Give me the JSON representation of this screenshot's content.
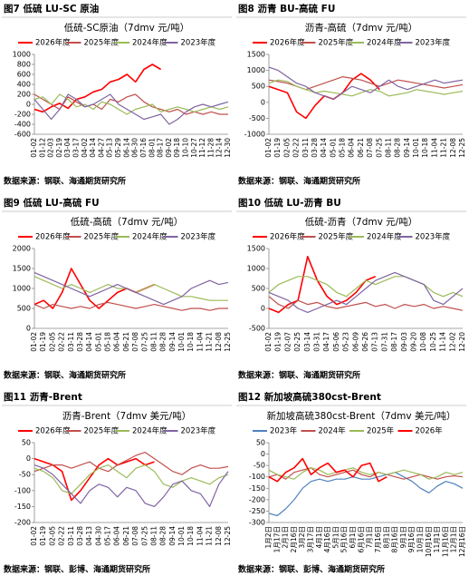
{
  "chart_data": [
    {
      "type": "line",
      "figure_title": "图7  低硫 LU-SC 原油",
      "title": "低硫-SC原油（7dmv 元/吨）",
      "categories": [
        "01-02",
        "01-12",
        "02-03",
        "02-19",
        "03-04",
        "03-17",
        "04-02",
        "04-14",
        "04-27",
        "05-13",
        "05-29",
        "06-14",
        "06-30",
        "07-16",
        "08-01",
        "08-17",
        "09-02",
        "09-18",
        "10-10",
        "10-27",
        "11-12",
        "11-28",
        "12-14",
        "12-30"
      ],
      "ylim": [
        -600,
        1000
      ],
      "yticks": [
        -600,
        -400,
        -200,
        0,
        200,
        400,
        600,
        800,
        1000
      ],
      "series": [
        {
          "name": "2026年度",
          "color": "#ff0000",
          "values": [
            -100,
            -150,
            -50,
            20,
            -80,
            100,
            150,
            250,
            300,
            450,
            500,
            600,
            450,
            700,
            800,
            700,
            null,
            null,
            null,
            null,
            null,
            null,
            null,
            null
          ]
        },
        {
          "name": "2025年度",
          "color": "#c0504d",
          "values": [
            200,
            100,
            0,
            -100,
            150,
            50,
            -50,
            0,
            -100,
            100,
            50,
            150,
            200,
            50,
            -50,
            -100,
            -150,
            -100,
            -200,
            -150,
            -200,
            -150,
            -200,
            -200
          ]
        },
        {
          "name": "2024年度",
          "color": "#9bbb59",
          "values": [
            100,
            150,
            0,
            200,
            100,
            -50,
            0,
            -100,
            50,
            0,
            -100,
            -200,
            -100,
            -50,
            0,
            -150,
            -100,
            -50,
            -100,
            -150,
            -100,
            -50,
            -100,
            -50
          ]
        },
        {
          "name": "2023年度",
          "color": "#8064a2",
          "values": [
            100,
            -100,
            -300,
            -100,
            200,
            100,
            -50,
            0,
            100,
            200,
            0,
            -100,
            -200,
            -300,
            -250,
            -200,
            -400,
            -300,
            -150,
            -50,
            0,
            -50,
            0,
            50
          ]
        }
      ],
      "source": "数据来源：钢联、海通期货研究所"
    },
    {
      "type": "line",
      "figure_title": "图8  沥青 BU-高硫 FU",
      "title": "沥青-高硫（7dmv 元/吨）",
      "categories": [
        "01-02",
        "01-19",
        "02-05",
        "02-22",
        "03-11",
        "03-28",
        "04-14",
        "05-01",
        "05-18",
        "06-04",
        "06-21",
        "07-08",
        "07-25",
        "08-11",
        "08-28",
        "09-14",
        "10-01",
        "10-18",
        "11-04",
        "11-21",
        "12-08",
        "12-25"
      ],
      "ylim": [
        -1000,
        1500
      ],
      "yticks": [
        -1000,
        -500,
        0,
        500,
        1000,
        1500
      ],
      "series": [
        {
          "name": "2026年度",
          "color": "#ff0000",
          "values": [
            500,
            400,
            300,
            -300,
            -500,
            -100,
            200,
            100,
            300,
            700,
            900,
            700,
            400,
            null,
            null,
            null,
            null,
            null,
            null,
            null,
            null,
            null
          ]
        },
        {
          "name": "2025年度",
          "color": "#c0504d",
          "values": [
            700,
            650,
            600,
            500,
            400,
            500,
            600,
            700,
            800,
            750,
            700,
            600,
            500,
            600,
            700,
            650,
            600,
            550,
            500,
            450,
            500,
            550
          ]
        },
        {
          "name": "2024年度",
          "color": "#9bbb59",
          "values": [
            600,
            700,
            650,
            500,
            400,
            300,
            350,
            300,
            250,
            200,
            300,
            400,
            350,
            200,
            250,
            300,
            400,
            350,
            300,
            250,
            300,
            350
          ]
        },
        {
          "name": "2023年度",
          "color": "#8064a2",
          "values": [
            1100,
            1000,
            800,
            600,
            500,
            300,
            200,
            100,
            300,
            500,
            400,
            300,
            500,
            700,
            500,
            400,
            500,
            600,
            700,
            600,
            650,
            700
          ]
        }
      ],
      "source": "数据来源：钢联、海通期货研究所"
    },
    {
      "type": "line",
      "figure_title": "图9  低硫 LU-高硫 FU",
      "title": "低硫-高硫（7dmv 元/吨）",
      "categories": [
        "01-02",
        "01-19",
        "02-05",
        "02-22",
        "03-11",
        "03-28",
        "04-14",
        "05-01",
        "05-18",
        "06-04",
        "06-21",
        "07-08",
        "07-25",
        "08-11",
        "08-28",
        "09-14",
        "10-01",
        "10-18",
        "11-04",
        "11-21",
        "12-08",
        "12-25"
      ],
      "ylim": [
        0,
        2000
      ],
      "yticks": [
        0,
        500,
        1000,
        1500,
        2000
      ],
      "series": [
        {
          "name": "2026年度",
          "color": "#ff0000",
          "values": [
            600,
            700,
            500,
            900,
            1500,
            1100,
            700,
            500,
            700,
            900,
            1000,
            900,
            1000,
            1100,
            null,
            null,
            null,
            null,
            null,
            null,
            null,
            null
          ]
        },
        {
          "name": "2025年度",
          "color": "#c0504d",
          "values": [
            600,
            500,
            600,
            550,
            500,
            550,
            500,
            600,
            650,
            600,
            550,
            500,
            550,
            600,
            550,
            500,
            450,
            500,
            500,
            450,
            500,
            500
          ]
        },
        {
          "name": "2024年度",
          "color": "#9bbb59",
          "values": [
            1300,
            1200,
            1100,
            1000,
            1100,
            1000,
            900,
            1000,
            1100,
            1000,
            1000,
            900,
            1000,
            1100,
            1000,
            900,
            800,
            800,
            750,
            700,
            700,
            700
          ]
        },
        {
          "name": "2023年度",
          "color": "#8064a2",
          "values": [
            1400,
            1300,
            1200,
            1100,
            1000,
            900,
            800,
            900,
            1000,
            1100,
            1000,
            900,
            800,
            700,
            600,
            700,
            800,
            1000,
            1100,
            1200,
            1100,
            1150
          ]
        }
      ],
      "source": "数据来源：钢联、海通期货研究所"
    },
    {
      "type": "line",
      "figure_title": "图10  低硫 LU-沥青 BU",
      "title": "低硫-沥青（7dmv 元/吨）",
      "categories": [
        "01-02",
        "01-19",
        "02-07",
        "02-25",
        "03-14",
        "03-31",
        "04-17",
        "05-06",
        "05-23",
        "06-09",
        "06-26",
        "07-13",
        "07-31",
        "08-17",
        "09-03",
        "09-20",
        "10-08",
        "10-25",
        "11-14",
        "12-02",
        "12-20"
      ],
      "ylim": [
        -500,
        1500
      ],
      "yticks": [
        -500,
        0,
        500,
        1000,
        1500
      ],
      "series": [
        {
          "name": "2026年度",
          "color": "#ff0000",
          "values": [
            0,
            -100,
            100,
            200,
            1300,
            700,
            300,
            100,
            200,
            400,
            700,
            800,
            null,
            null,
            null,
            null,
            null,
            null,
            null,
            null,
            null
          ]
        },
        {
          "name": "2025年度",
          "color": "#c0504d",
          "values": [
            300,
            100,
            0,
            200,
            100,
            150,
            50,
            0,
            50,
            100,
            150,
            50,
            100,
            0,
            100,
            50,
            100,
            0,
            50,
            0,
            -50
          ]
        },
        {
          "name": "2024年度",
          "color": "#9bbb59",
          "values": [
            400,
            600,
            700,
            800,
            800,
            700,
            600,
            400,
            300,
            500,
            700,
            600,
            700,
            800,
            800,
            700,
            600,
            400,
            300,
            400,
            300
          ]
        },
        {
          "name": "2023年度",
          "color": "#8064a2",
          "values": [
            400,
            300,
            200,
            0,
            -100,
            0,
            100,
            200,
            100,
            300,
            500,
            700,
            800,
            900,
            800,
            700,
            600,
            200,
            100,
            300,
            500
          ]
        }
      ],
      "source": "数据来源：钢联、海通期货研究所"
    },
    {
      "type": "line",
      "figure_title": "图11  沥青-Brent",
      "title": "沥青-Brent（7dmv 美元/吨）",
      "categories": [
        "01-02",
        "01-19",
        "02-05",
        "02-22",
        "03-11",
        "03-28",
        "04-13",
        "04-30",
        "05-17",
        "06-04",
        "06-21",
        "07-08",
        "07-25",
        "08-11",
        "08-28",
        "09-14",
        "10-01",
        "10-18",
        "11-04",
        "11-21",
        "12-08",
        "12-25"
      ],
      "ylim": [
        -200,
        50
      ],
      "yticks": [
        -200,
        -150,
        -100,
        -50,
        0,
        50
      ],
      "series": [
        {
          "name": "2026年度",
          "color": "#ff0000",
          "values": [
            0,
            -10,
            -20,
            -40,
            -130,
            -100,
            -60,
            -20,
            0,
            -20,
            -10,
            0,
            -20,
            -10,
            null,
            null,
            null,
            null,
            null,
            null,
            null,
            null
          ]
        },
        {
          "name": "2025年度",
          "color": "#c0504d",
          "values": [
            -40,
            -30,
            -20,
            -20,
            -30,
            -20,
            -10,
            -30,
            -40,
            -20,
            -5,
            10,
            20,
            0,
            -20,
            -40,
            -50,
            -30,
            -20,
            -30,
            -30,
            -25
          ]
        },
        {
          "name": "2024年度",
          "color": "#9bbb59",
          "values": [
            -30,
            -40,
            -60,
            -100,
            -110,
            -80,
            -50,
            -30,
            -20,
            -40,
            -60,
            -30,
            -20,
            -40,
            -80,
            -90,
            -70,
            -60,
            -70,
            -80,
            -60,
            -50
          ]
        },
        {
          "name": "2023年度",
          "color": "#8064a2",
          "values": [
            -20,
            -30,
            -50,
            -80,
            -110,
            -140,
            -100,
            -80,
            -90,
            -120,
            -90,
            -100,
            -140,
            -150,
            -120,
            -80,
            -70,
            -100,
            -110,
            -150,
            -80,
            -40
          ]
        }
      ],
      "source": "数据来源：钢联、彭博、海通期货研究所"
    },
    {
      "type": "line",
      "figure_title": "图12  新加坡高硫380cst-Brent",
      "title": "新加坡高硫380cst-Brent（7dmv 美元/吨）",
      "categories": [
        "1月2日",
        "1月17日",
        "2月1日",
        "2月16日",
        "3月2日",
        "3月17日",
        "4月1日",
        "4月16日",
        "5月1日",
        "5月16日",
        "6月1日",
        "6月16日",
        "7月1日",
        "7月16日",
        "8月1日",
        "8月16日",
        "9月1日",
        "9月16日",
        "10月1日",
        "10月16日",
        "11月1日",
        "11月16日",
        "12月1日",
        "12月16日"
      ],
      "ylim": [
        -300,
        50
      ],
      "yticks": [
        -300,
        -250,
        -200,
        -150,
        -100,
        -50,
        0,
        50
      ],
      "series": [
        {
          "name": "2023年",
          "color": "#4f81bd",
          "values": [
            -260,
            -270,
            -240,
            -200,
            -150,
            -120,
            -110,
            -120,
            -110,
            -110,
            -100,
            -110,
            -110,
            -100,
            -90,
            -80,
            -100,
            -120,
            -150,
            -170,
            -140,
            -120,
            -130,
            -150
          ]
        },
        {
          "name": "2024年",
          "color": "#c0504d",
          "values": [
            -100,
            -90,
            -110,
            -80,
            -70,
            -60,
            -90,
            -100,
            -90,
            -80,
            -70,
            -90,
            -100,
            -80,
            -90,
            -100,
            -110,
            -100,
            -90,
            -100,
            -110,
            -100,
            -95,
            -100
          ]
        },
        {
          "name": "2025年",
          "color": "#9bbb59",
          "values": [
            -70,
            -90,
            -100,
            -110,
            -80,
            -60,
            -70,
            -90,
            -80,
            -70,
            -60,
            -80,
            -90,
            -80,
            -90,
            -80,
            -70,
            -80,
            -90,
            -110,
            -100,
            -80,
            -90,
            -80
          ]
        },
        {
          "name": "2026年",
          "color": "#ff0000",
          "values": [
            -100,
            -120,
            -80,
            -60,
            -20,
            -90,
            -60,
            -40,
            -80,
            -70,
            -100,
            -50,
            -40,
            -120,
            -100,
            null,
            null,
            null,
            null,
            null,
            null,
            null,
            null,
            null
          ]
        }
      ],
      "source": "数据来源：钢联、彭博、海通期货研究所"
    }
  ]
}
